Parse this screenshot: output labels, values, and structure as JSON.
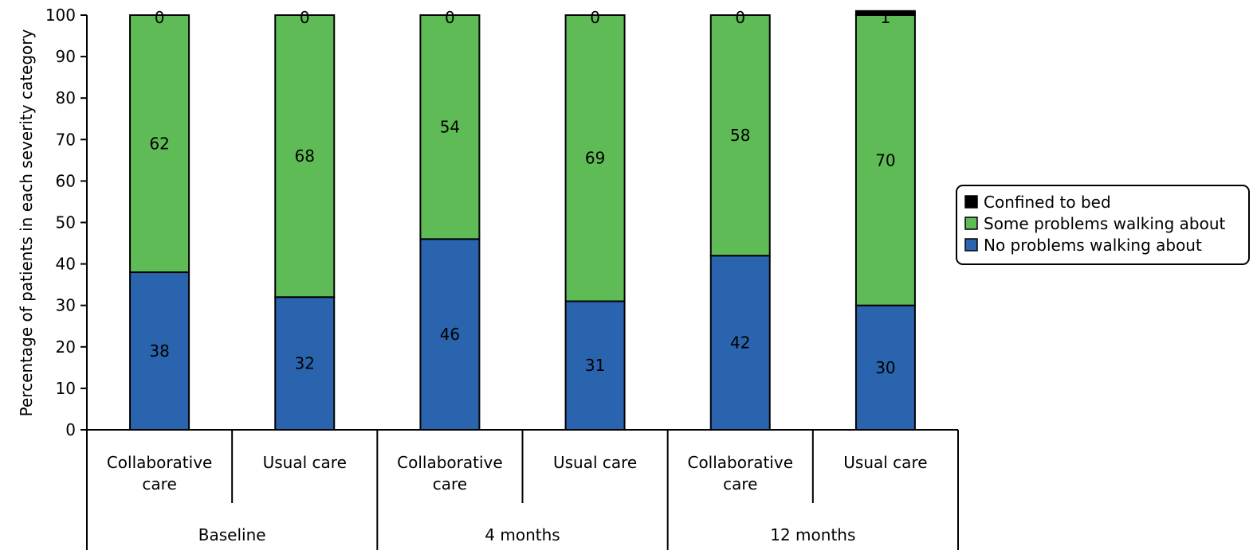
{
  "chart_data": {
    "type": "bar",
    "stacked": true,
    "ylabel": "Percentage of patients in each severity category",
    "ylim": [
      0,
      100
    ],
    "yticks": [
      0,
      10,
      20,
      30,
      40,
      50,
      60,
      70,
      80,
      90,
      100
    ],
    "categories": [
      {
        "label": "Collaborative care",
        "group": "Baseline"
      },
      {
        "label": "Usual care",
        "group": "Baseline"
      },
      {
        "label": "Collaborative care",
        "group": "4 months"
      },
      {
        "label": "Usual care",
        "group": "4 months"
      },
      {
        "label": "Collaborative care",
        "group": "12 months"
      },
      {
        "label": "Usual care",
        "group": "12 months"
      }
    ],
    "groups": [
      "Baseline",
      "4 months",
      "12 months"
    ],
    "series": [
      {
        "name": "No problems walking about",
        "color": "#2a64ae",
        "values": [
          38,
          32,
          46,
          31,
          42,
          30
        ]
      },
      {
        "name": "Some problems walking about",
        "color": "#5fbb55",
        "values": [
          62,
          68,
          54,
          69,
          58,
          70
        ]
      },
      {
        "name": "Confined to bed",
        "color": "#000000",
        "values": [
          0,
          0,
          0,
          0,
          0,
          1
        ]
      }
    ],
    "legend": {
      "position": "right",
      "order": [
        "Confined to bed",
        "Some problems walking about",
        "No problems walking about"
      ]
    },
    "grid": false
  }
}
